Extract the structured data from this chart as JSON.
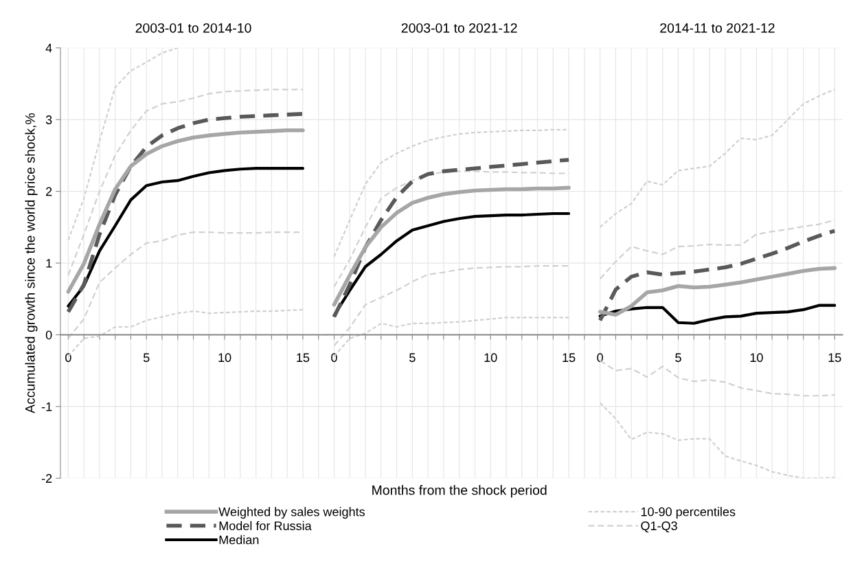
{
  "chart_data": [
    {
      "type": "line",
      "title": "2003-01 to 2014-10",
      "ylabel": "Accumulated growth since the world price shock,%",
      "x": [
        0,
        1,
        2,
        3,
        4,
        5,
        6,
        7,
        8,
        9,
        10,
        11,
        12,
        13,
        14,
        15
      ],
      "xlim": [
        -0.5,
        16.5
      ],
      "xticks": [
        0,
        {
          "value": 1,
          "label": null
        },
        {
          "value": 2,
          "label": null
        },
        {
          "value": 3,
          "label": null
        },
        {
          "value": 4,
          "label": null
        },
        5,
        {
          "value": 6,
          "label": null
        },
        {
          "value": 7,
          "label": null
        },
        {
          "value": 8,
          "label": null
        },
        {
          "value": 9,
          "label": null
        },
        10,
        {
          "value": 11,
          "label": null
        },
        {
          "value": 12,
          "label": null
        },
        {
          "value": 13,
          "label": null
        },
        {
          "value": 14,
          "label": null
        },
        15,
        {
          "value": 16,
          "label": null
        }
      ],
      "ylim": [
        -2,
        4
      ],
      "yticks": [
        -2,
        -1,
        0,
        1,
        2,
        3,
        4
      ],
      "grid": true,
      "legend": "bottom",
      "series": [
        {
          "name": "Weighted by sales weights",
          "color": "#a6a6a6",
          "line_style": "solid",
          "values": [
            0.6,
            0.99,
            1.54,
            2.03,
            2.35,
            2.52,
            2.63,
            2.7,
            2.75,
            2.78,
            2.8,
            2.82,
            2.83,
            2.84,
            2.85,
            2.85
          ]
        },
        {
          "name": "Model for Russia",
          "color": "#595959",
          "line_style": "dashed",
          "values": [
            0.32,
            0.7,
            1.4,
            1.95,
            2.35,
            2.62,
            2.78,
            2.88,
            2.95,
            3.0,
            3.02,
            3.04,
            3.05,
            3.06,
            3.07,
            3.08
          ]
        },
        {
          "name": "Median",
          "color": "#000000",
          "line_style": "solid",
          "values": [
            0.4,
            0.68,
            1.17,
            1.52,
            1.88,
            2.08,
            2.13,
            2.15,
            2.21,
            2.26,
            2.29,
            2.31,
            2.32,
            2.32,
            2.32,
            2.32
          ]
        },
        {
          "name": "10-90 percentiles",
          "color": "#d0d0d0",
          "line_style": "dotted",
          "values": [
            1.32,
            1.9,
            2.7,
            3.45,
            3.68,
            3.8,
            3.93,
            4.0,
            null,
            null,
            null,
            null,
            null,
            null,
            null,
            null
          ]
        },
        {
          "name": "Q1-Q3",
          "color": "#d0d0d0",
          "line_style": "dashed",
          "values": [
            0.83,
            1.4,
            2.0,
            2.5,
            2.85,
            3.12,
            3.22,
            3.25,
            3.3,
            3.36,
            3.39,
            3.4,
            3.41,
            3.42,
            3.42,
            3.42
          ]
        },
        {
          "color": "#d0d0d0",
          "line_style": "dashed",
          "values": [
            -0.05,
            0.22,
            0.73,
            0.93,
            1.12,
            1.28,
            1.31,
            1.39,
            1.43,
            1.43,
            1.42,
            1.42,
            1.42,
            1.43,
            1.43,
            1.43
          ]
        },
        {
          "color": "#d0d0d0",
          "line_style": "dotted",
          "values": [
            -0.3,
            -0.05,
            -0.02,
            0.11,
            0.11,
            0.2,
            0.25,
            0.3,
            0.33,
            0.3,
            0.31,
            0.32,
            0.33,
            0.33,
            0.34,
            0.35
          ]
        }
      ]
    },
    {
      "type": "line",
      "title": "2003-01 to 2021-12",
      "xlabel": "Months from the shock period",
      "x": [
        0,
        1,
        2,
        3,
        4,
        5,
        6,
        7,
        8,
        9,
        10,
        11,
        12,
        13,
        14,
        15
      ],
      "xlim": [
        -0.5,
        16.5
      ],
      "xticks": [
        0,
        {
          "value": 1,
          "label": null
        },
        {
          "value": 2,
          "label": null
        },
        {
          "value": 3,
          "label": null
        },
        {
          "value": 4,
          "label": null
        },
        5,
        {
          "value": 6,
          "label": null
        },
        {
          "value": 7,
          "label": null
        },
        {
          "value": 8,
          "label": null
        },
        {
          "value": 9,
          "label": null
        },
        10,
        {
          "value": 11,
          "label": null
        },
        {
          "value": 12,
          "label": null
        },
        {
          "value": 13,
          "label": null
        },
        {
          "value": 14,
          "label": null
        },
        15,
        {
          "value": 16,
          "label": null
        }
      ],
      "ylim": [
        -2,
        4
      ],
      "yticks": [
        -2,
        -1,
        0,
        1,
        2,
        3,
        4
      ],
      "grid": true,
      "tick_labels": "x",
      "series": [
        {
          "color": "#a6a6a6",
          "line_style": "solid",
          "values": [
            0.42,
            0.83,
            1.22,
            1.5,
            1.7,
            1.84,
            1.91,
            1.96,
            1.99,
            2.01,
            2.02,
            2.03,
            2.03,
            2.04,
            2.04,
            2.05
          ]
        },
        {
          "color": "#595959",
          "line_style": "dashed",
          "values": [
            0.25,
            0.7,
            1.22,
            1.6,
            1.92,
            2.14,
            2.24,
            2.28,
            2.3,
            2.32,
            2.34,
            2.36,
            2.38,
            2.4,
            2.42,
            2.44
          ]
        },
        {
          "color": "#000000",
          "line_style": "solid",
          "values": [
            0.27,
            0.62,
            0.95,
            1.12,
            1.31,
            1.46,
            1.52,
            1.58,
            1.62,
            1.65,
            1.66,
            1.67,
            1.67,
            1.68,
            1.69,
            1.69
          ]
        },
        {
          "color": "#d0d0d0",
          "line_style": "dotted",
          "values": [
            1.09,
            1.6,
            2.1,
            2.4,
            2.53,
            2.63,
            2.71,
            2.76,
            2.8,
            2.82,
            2.83,
            2.84,
            2.85,
            2.85,
            2.86,
            2.86
          ]
        },
        {
          "color": "#d0d0d0",
          "line_style": "dashed",
          "values": [
            0.67,
            1.05,
            1.5,
            1.9,
            2.05,
            2.15,
            2.23,
            2.27,
            2.28,
            2.28,
            2.27,
            2.27,
            2.26,
            2.26,
            2.25,
            2.25
          ]
        },
        {
          "color": "#d0d0d0",
          "line_style": "dashed",
          "values": [
            -0.15,
            0.1,
            0.42,
            0.52,
            0.62,
            0.74,
            0.84,
            0.87,
            0.91,
            0.93,
            0.94,
            0.95,
            0.95,
            0.96,
            0.96,
            0.96
          ]
        },
        {
          "color": "#d0d0d0",
          "line_style": "dotted",
          "values": [
            -0.3,
            -0.05,
            0.02,
            0.16,
            0.11,
            0.16,
            0.16,
            0.17,
            0.18,
            0.2,
            0.22,
            0.24,
            0.24,
            0.24,
            0.24,
            0.24
          ]
        }
      ]
    },
    {
      "type": "line",
      "title": "2014-11 to 2021-12",
      "x": [
        0,
        1,
        2,
        3,
        4,
        5,
        6,
        7,
        8,
        9,
        10,
        11,
        12,
        13,
        14,
        15
      ],
      "xlim": [
        -0.5,
        15.5
      ],
      "xticks": [
        0,
        {
          "value": 1,
          "label": null
        },
        {
          "value": 2,
          "label": null
        },
        {
          "value": 3,
          "label": null
        },
        {
          "value": 4,
          "label": null
        },
        5,
        {
          "value": 6,
          "label": null
        },
        {
          "value": 7,
          "label": null
        },
        {
          "value": 8,
          "label": null
        },
        {
          "value": 9,
          "label": null
        },
        10,
        {
          "value": 11,
          "label": null
        },
        {
          "value": 12,
          "label": null
        },
        {
          "value": 13,
          "label": null
        },
        {
          "value": 14,
          "label": null
        },
        15
      ],
      "ylim": [
        -2,
        4
      ],
      "yticks": [
        -2,
        -1,
        0,
        1,
        2,
        3,
        4
      ],
      "grid": true,
      "tick_labels": "x",
      "series": [
        {
          "color": "#a6a6a6",
          "line_style": "solid",
          "values": [
            0.32,
            0.28,
            0.4,
            0.59,
            0.62,
            0.68,
            0.66,
            0.67,
            0.7,
            0.73,
            0.77,
            0.81,
            0.85,
            0.89,
            0.92,
            0.93
          ]
        },
        {
          "color": "#595959",
          "line_style": "dashed",
          "values": [
            0.2,
            0.63,
            0.81,
            0.87,
            0.84,
            0.86,
            0.88,
            0.91,
            0.94,
            0.99,
            1.06,
            1.13,
            1.21,
            1.3,
            1.38,
            1.45
          ]
        },
        {
          "color": "#000000",
          "line_style": "solid",
          "values": [
            0.26,
            0.33,
            0.36,
            0.38,
            0.38,
            0.17,
            0.16,
            0.21,
            0.25,
            0.26,
            0.3,
            0.31,
            0.32,
            0.35,
            0.41,
            0.41
          ]
        },
        {
          "color": "#d0d0d0",
          "line_style": "dotted",
          "values": [
            1.5,
            1.69,
            1.83,
            2.14,
            2.09,
            2.29,
            2.32,
            2.35,
            2.53,
            2.74,
            2.72,
            2.78,
            3.0,
            3.22,
            3.33,
            3.42
          ]
        },
        {
          "color": "#d0d0d0",
          "line_style": "dashed",
          "values": [
            0.78,
            1.02,
            1.23,
            1.17,
            1.12,
            1.23,
            1.24,
            1.26,
            1.25,
            1.25,
            1.4,
            1.44,
            1.47,
            1.51,
            1.54,
            1.6
          ]
        },
        {
          "color": "#d0d0d0",
          "line_style": "dashed",
          "values": [
            -0.36,
            -0.5,
            -0.47,
            -0.59,
            -0.44,
            -0.6,
            -0.65,
            -0.63,
            -0.66,
            -0.74,
            -0.78,
            -0.82,
            -0.83,
            -0.85,
            -0.85,
            -0.84
          ]
        },
        {
          "color": "#d0d0d0",
          "line_style": "dotted",
          "values": [
            -0.95,
            -1.17,
            -1.46,
            -1.36,
            -1.38,
            -1.47,
            -1.45,
            -1.45,
            -1.69,
            -1.76,
            -1.82,
            -1.91,
            -1.96,
            -2.0,
            -2.0,
            -1.99
          ]
        }
      ]
    }
  ]
}
